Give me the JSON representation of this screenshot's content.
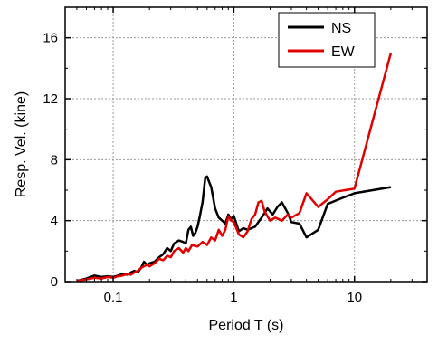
{
  "chart_data": {
    "type": "line",
    "xlabel": "Period T (s)",
    "ylabel": "Resp. Vel. (kine)",
    "xscale": "log",
    "xlim": [
      0.04,
      40
    ],
    "ylim": [
      0,
      18
    ],
    "x_ticks": [
      0.1,
      1,
      10
    ],
    "x_tick_labels": [
      "0.1",
      "1",
      "10"
    ],
    "y_ticks": [
      0,
      4,
      8,
      12,
      16
    ],
    "y_tick_labels": [
      "0",
      "4",
      "8",
      "12",
      "16"
    ],
    "grid": true,
    "legend_position": "top-right",
    "series": [
      {
        "name": "NS",
        "color": "#000000",
        "points": [
          [
            0.05,
            0.05
          ],
          [
            0.06,
            0.2
          ],
          [
            0.07,
            0.4
          ],
          [
            0.08,
            0.3
          ],
          [
            0.09,
            0.35
          ],
          [
            0.1,
            0.3
          ],
          [
            0.11,
            0.4
          ],
          [
            0.12,
            0.5
          ],
          [
            0.13,
            0.45
          ],
          [
            0.14,
            0.6
          ],
          [
            0.15,
            0.7
          ],
          [
            0.16,
            0.6
          ],
          [
            0.17,
            0.9
          ],
          [
            0.18,
            1.3
          ],
          [
            0.19,
            1.1
          ],
          [
            0.2,
            1.2
          ],
          [
            0.22,
            1.3
          ],
          [
            0.24,
            1.6
          ],
          [
            0.26,
            1.8
          ],
          [
            0.28,
            2.2
          ],
          [
            0.3,
            2.0
          ],
          [
            0.32,
            2.5
          ],
          [
            0.35,
            2.7
          ],
          [
            0.38,
            2.6
          ],
          [
            0.4,
            2.5
          ],
          [
            0.42,
            3.4
          ],
          [
            0.44,
            3.6
          ],
          [
            0.46,
            3.0
          ],
          [
            0.48,
            3.2
          ],
          [
            0.5,
            3.6
          ],
          [
            0.52,
            4.2
          ],
          [
            0.55,
            5.2
          ],
          [
            0.58,
            6.8
          ],
          [
            0.6,
            6.9
          ],
          [
            0.62,
            6.6
          ],
          [
            0.65,
            6.2
          ],
          [
            0.7,
            4.8
          ],
          [
            0.75,
            4.2
          ],
          [
            0.8,
            4.0
          ],
          [
            0.85,
            3.8
          ],
          [
            0.9,
            4.4
          ],
          [
            0.95,
            4.1
          ],
          [
            1.0,
            4.3
          ],
          [
            1.1,
            3.3
          ],
          [
            1.2,
            3.5
          ],
          [
            1.3,
            3.4
          ],
          [
            1.5,
            3.6
          ],
          [
            1.7,
            4.2
          ],
          [
            1.9,
            4.8
          ],
          [
            2.1,
            4.4
          ],
          [
            2.3,
            4.9
          ],
          [
            2.5,
            5.2
          ],
          [
            2.8,
            4.5
          ],
          [
            3.0,
            3.9
          ],
          [
            3.5,
            3.8
          ],
          [
            4.0,
            2.9
          ],
          [
            5.0,
            3.4
          ],
          [
            6.0,
            5.1
          ],
          [
            8.0,
            5.5
          ],
          [
            10.0,
            5.8
          ],
          [
            20.0,
            6.2
          ]
        ]
      },
      {
        "name": "EW",
        "color": "#e00000",
        "points": [
          [
            0.05,
            0.05
          ],
          [
            0.06,
            0.15
          ],
          [
            0.07,
            0.25
          ],
          [
            0.08,
            0.2
          ],
          [
            0.09,
            0.3
          ],
          [
            0.1,
            0.25
          ],
          [
            0.11,
            0.35
          ],
          [
            0.12,
            0.4
          ],
          [
            0.13,
            0.5
          ],
          [
            0.14,
            0.45
          ],
          [
            0.15,
            0.6
          ],
          [
            0.16,
            0.7
          ],
          [
            0.17,
            0.9
          ],
          [
            0.18,
            1.0
          ],
          [
            0.19,
            1.1
          ],
          [
            0.2,
            1.0
          ],
          [
            0.22,
            1.2
          ],
          [
            0.24,
            1.5
          ],
          [
            0.26,
            1.4
          ],
          [
            0.28,
            1.7
          ],
          [
            0.3,
            1.6
          ],
          [
            0.32,
            2.0
          ],
          [
            0.35,
            2.2
          ],
          [
            0.38,
            1.9
          ],
          [
            0.4,
            2.2
          ],
          [
            0.42,
            2.0
          ],
          [
            0.45,
            2.4
          ],
          [
            0.5,
            2.3
          ],
          [
            0.55,
            2.6
          ],
          [
            0.6,
            2.4
          ],
          [
            0.65,
            2.9
          ],
          [
            0.7,
            2.7
          ],
          [
            0.75,
            3.4
          ],
          [
            0.8,
            3.0
          ],
          [
            0.85,
            3.4
          ],
          [
            0.9,
            4.3
          ],
          [
            0.95,
            4.0
          ],
          [
            1.0,
            3.9
          ],
          [
            1.1,
            3.1
          ],
          [
            1.2,
            2.9
          ],
          [
            1.3,
            3.3
          ],
          [
            1.4,
            4.1
          ],
          [
            1.5,
            4.4
          ],
          [
            1.6,
            5.2
          ],
          [
            1.7,
            5.3
          ],
          [
            1.8,
            4.6
          ],
          [
            2.0,
            4.0
          ],
          [
            2.2,
            4.2
          ],
          [
            2.5,
            4.0
          ],
          [
            2.8,
            4.4
          ],
          [
            3.0,
            4.2
          ],
          [
            3.5,
            4.5
          ],
          [
            4.0,
            5.8
          ],
          [
            5.0,
            4.9
          ],
          [
            6.0,
            5.4
          ],
          [
            7.0,
            5.9
          ],
          [
            10.0,
            6.1
          ],
          [
            20.0,
            15.0
          ]
        ]
      }
    ]
  }
}
